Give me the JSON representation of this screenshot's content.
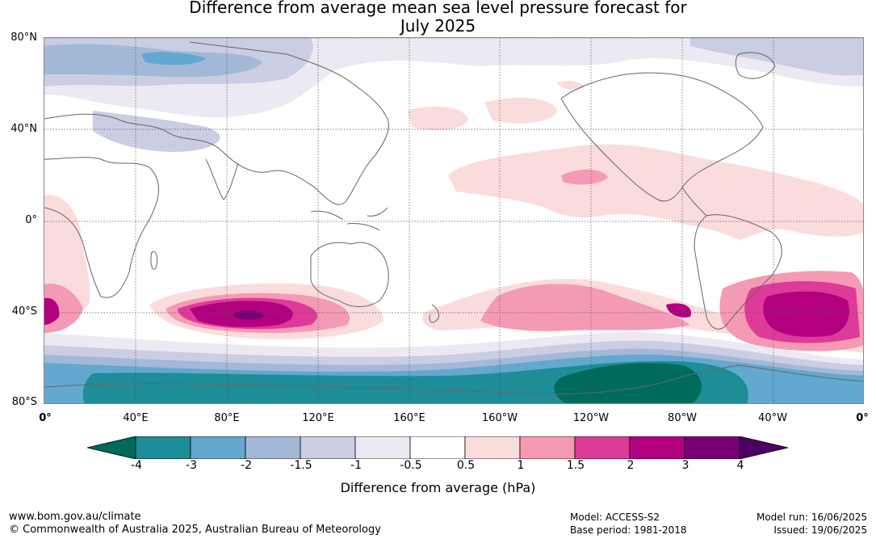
{
  "title_line1": "Difference from average mean sea level pressure forecast for",
  "title_line2": "July 2025",
  "lat_labels": [
    "80°N",
    "40°N",
    "0°",
    "40°S",
    "80°S"
  ],
  "lon_labels": [
    "0°",
    "40°E",
    "80°E",
    "120°E",
    "160°E",
    "160°W",
    "120°W",
    "80°W",
    "40°W",
    "0°"
  ],
  "colorbar": {
    "ticks": [
      "-4",
      "-3",
      "-2",
      "-1.5",
      "-1",
      "-0.5",
      "0.5",
      "1",
      "1.5",
      "2",
      "3",
      "4"
    ],
    "colors": [
      "#006a5c",
      "#1d8d97",
      "#62a8cf",
      "#a4b8d7",
      "#cbcde3",
      "#ece9f2",
      "#ffffff",
      "#fbdcdc",
      "#f59ab5",
      "#dd3a99",
      "#b3007f",
      "#7a0075",
      "#4d0063"
    ],
    "title": "Difference from average (hPa)"
  },
  "footer": {
    "url": "www.bom.gov.au/climate",
    "copyright": "© Commonwealth of Australia 2025, Australian Bureau of Meteorology",
    "model": "Model: ACCESS-S2",
    "base_period": "Base period: 1981-2018",
    "model_run": "Model run: 16/06/2025",
    "issued": "Issued: 19/06/2025"
  }
}
